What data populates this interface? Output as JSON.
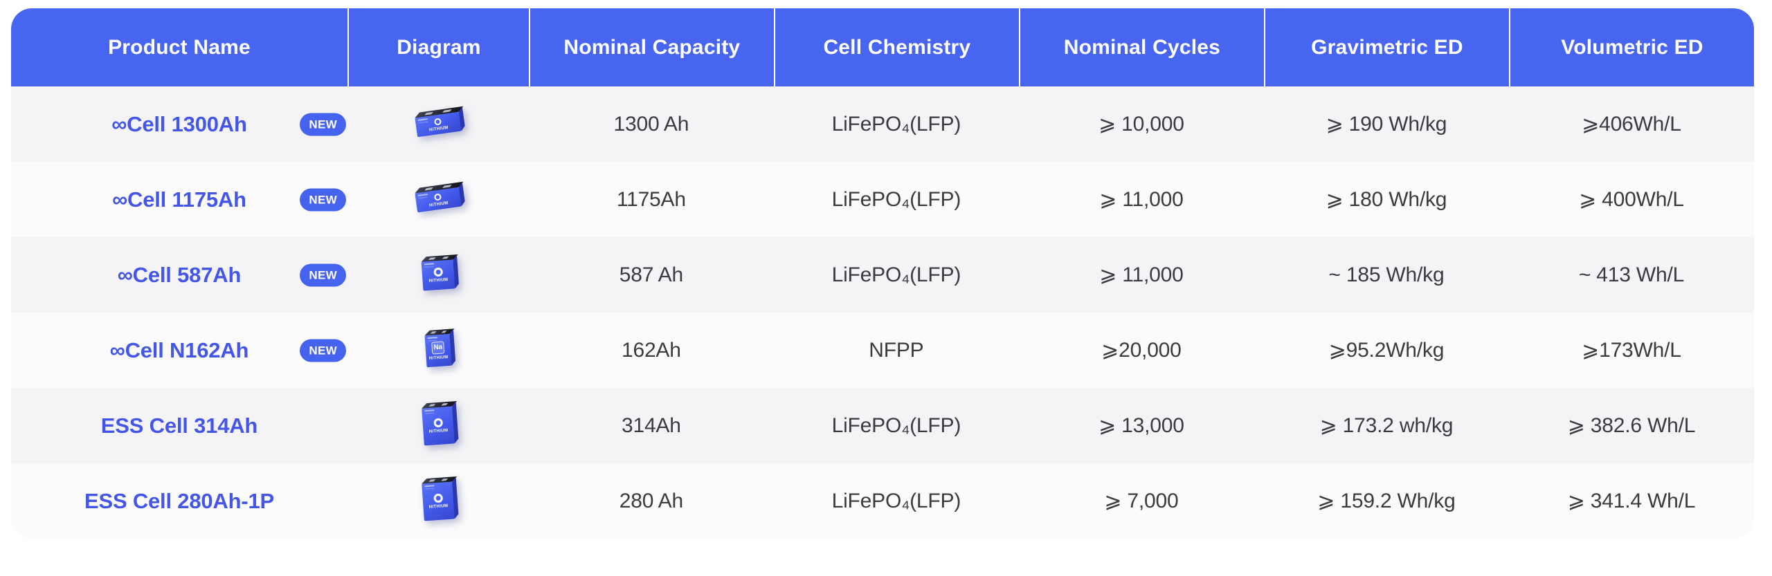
{
  "table": {
    "columns": [
      {
        "label": "Product Name"
      },
      {
        "label": "Diagram"
      },
      {
        "label": "Nominal Capacity"
      },
      {
        "label": "Cell Chemistry"
      },
      {
        "label": "Nominal Cycles"
      },
      {
        "label": "Gravimetric ED"
      },
      {
        "label": "Volumetric ED"
      }
    ],
    "new_badge_label": "NEW",
    "rows": [
      {
        "name": "∞Cell 1300Ah",
        "is_new": true,
        "diagram": {
          "variant": "flat",
          "icon": "battery-cell-flat-3d",
          "brand": "HiTHIUM"
        },
        "capacity": "1300 Ah",
        "chemistry": "LiFePO₄(LFP)",
        "cycles": "⩾ 10,000",
        "gravimetric": "⩾ 190 Wh/kg",
        "volumetric": "⩾406Wh/L"
      },
      {
        "name": "∞Cell 1175Ah",
        "is_new": true,
        "diagram": {
          "variant": "flat",
          "icon": "battery-cell-flat-3d",
          "brand": "HiTHIUM"
        },
        "capacity": "1175Ah",
        "chemistry": "LiFePO₄(LFP)",
        "cycles": "⩾ 11,000",
        "gravimetric": "⩾ 180 Wh/kg",
        "volumetric": "⩾ 400Wh/L"
      },
      {
        "name": "∞Cell 587Ah",
        "is_new": true,
        "diagram": {
          "variant": "square",
          "icon": "battery-cell-square-3d",
          "brand": "HiTHIUM"
        },
        "capacity": "587 Ah",
        "chemistry": "LiFePO₄(LFP)",
        "cycles": "⩾ 11,000",
        "gravimetric": "~ 185 Wh/kg",
        "volumetric": "~ 413 Wh/L"
      },
      {
        "name": "∞Cell N162Ah",
        "is_new": true,
        "diagram": {
          "variant": "na",
          "icon": "battery-cell-sodium-3d",
          "brand": "HiTHIUM",
          "element_label": "Na"
        },
        "capacity": "162Ah",
        "chemistry": "NFPP",
        "cycles": "⩾20,000",
        "gravimetric": "⩾95.2Wh/kg",
        "volumetric": "⩾173Wh/L"
      },
      {
        "name": "ESS Cell 314Ah",
        "is_new": false,
        "diagram": {
          "variant": "tall",
          "icon": "battery-cell-tall-3d",
          "brand": "HiTHIUM"
        },
        "capacity": "314Ah",
        "chemistry": "LiFePO₄(LFP)",
        "cycles": "⩾ 13,000",
        "gravimetric": "⩾ 173.2 wh/kg",
        "volumetric": "⩾ 382.6 Wh/L"
      },
      {
        "name": "ESS Cell 280Ah-1P",
        "is_new": false,
        "diagram": {
          "variant": "tall",
          "icon": "battery-cell-tall-3d",
          "brand": "HiTHIUM"
        },
        "capacity": "280 Ah",
        "chemistry": "LiFePO₄(LFP)",
        "cycles": "⩾ 7,000",
        "gravimetric": "⩾ 159.2 Wh/kg",
        "volumetric": "⩾ 341.4 Wh/L"
      }
    ]
  },
  "colors": {
    "header_bg": "#4765f1",
    "header_text": "#ffffff",
    "badge_bg": "#4663ef",
    "badge_text": "#ffffff",
    "product_link": "#4356e9",
    "row_bg_odd": "#f4f4f6",
    "row_bg_even": "#fbfbfc",
    "body_text": "#3b3b3f",
    "battery_blue": "#4359ea"
  }
}
